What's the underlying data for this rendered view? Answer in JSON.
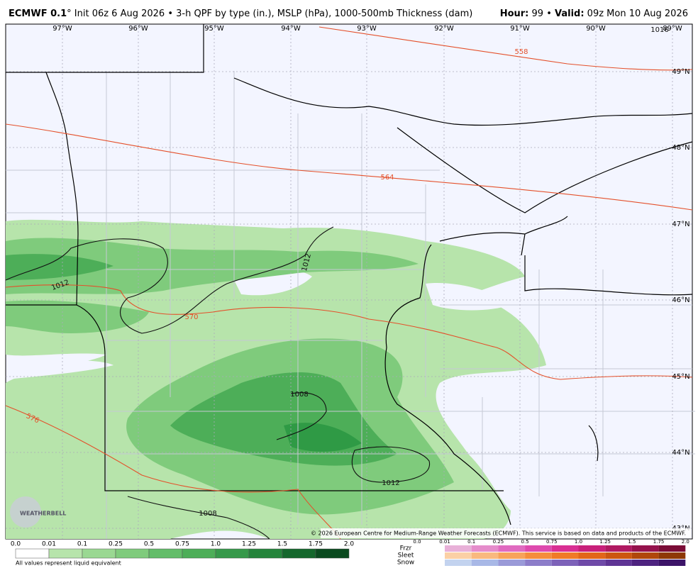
{
  "header": {
    "model": "ECMWF 0.1",
    "description": "° Init 06z 6 Aug 2026 • 3-h QPF by type (in.), MSLP (hPa), 1000-500mb Thickness (dam)",
    "hour_label": "Hour:",
    "hour_value": " 99 • ",
    "valid_label": "Valid:",
    "valid_value": " 09z Mon 10 Aug 2026"
  },
  "map": {
    "longitudes": [
      "97°W",
      "96°W",
      "95°W",
      "94°W",
      "93°W",
      "92°W",
      "91°W",
      "90°W",
      "89°W"
    ],
    "latitudes": [
      "49°N",
      "48°N",
      "47°N",
      "46°N",
      "45°N",
      "44°N",
      "43°N"
    ],
    "thickness_labels": [
      "558",
      "564",
      "570",
      "576"
    ],
    "pressure_labels": [
      "1012",
      "1012",
      "1012",
      "1008",
      "1008",
      "1016"
    ],
    "watermark": "WEATHERBELL",
    "copyright": "© 2026 European Centre for Medium-Range Weather Forecasts (ECMWF). This service is based on data and products of the ECMWF."
  },
  "legend": {
    "rain_ticks": [
      "0.0",
      "0.01",
      "0.1",
      "0.25",
      "0.5",
      "0.75",
      "1.0",
      "1.25",
      "1.5",
      "1.75",
      "2.0"
    ],
    "note": "All values represent liquid equivalent",
    "mix_labels": [
      "Frzr",
      "Sleet",
      "Snow"
    ],
    "mix_ticks": [
      "0.0",
      "0.01",
      "0.1",
      "0.25",
      "0.5",
      "0.75",
      "1.0",
      "1.25",
      "1.5",
      "1.75",
      "2.0"
    ]
  }
}
